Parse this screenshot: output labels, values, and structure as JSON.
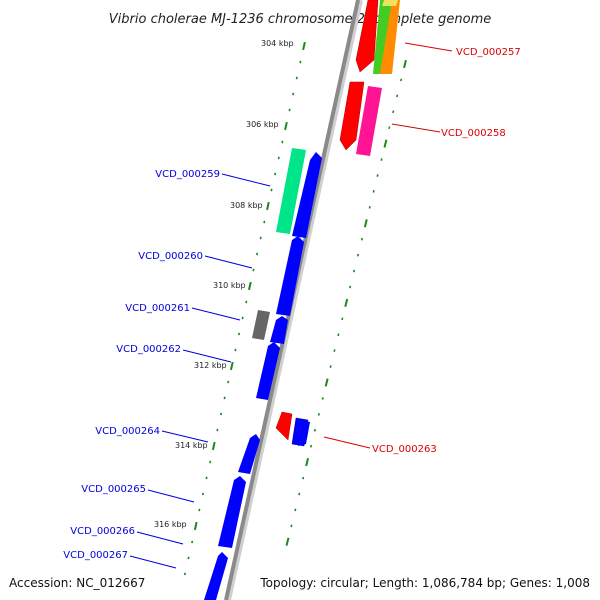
{
  "title": "Vibrio cholerae MJ-1236 chromosome 2, complete genome",
  "accession": "Accession: NC_012667",
  "summary": "Topology: circular; Length: 1,086,784 bp; Genes: 1,008",
  "ticks": [
    {
      "label": "304 kbp"
    },
    {
      "label": "306 kbp"
    },
    {
      "label": "308 kbp"
    },
    {
      "label": "310 kbp"
    },
    {
      "label": "312 kbp"
    },
    {
      "label": "314 kbp"
    },
    {
      "label": "316 kbp"
    }
  ],
  "colors": {
    "forward_label": "#0000dd",
    "reverse_label": "#dd0000",
    "backbone": "#8a8a8a",
    "tick": "#1a8a1a",
    "blue_gene": "#0000ff",
    "red_gene": "#ff0000",
    "magenta_gene": "#ff1493",
    "green_gene": "#00e58a",
    "grey_gene": "#666666",
    "lime_gene": "#44cc22",
    "orange_gene": "#ff8c00"
  },
  "gene_labels": [
    {
      "text": "VCD_000257",
      "strand": "reverse"
    },
    {
      "text": "VCD_000258",
      "strand": "reverse"
    },
    {
      "text": "VCD_000259",
      "strand": "forward"
    },
    {
      "text": "VCD_000260",
      "strand": "forward"
    },
    {
      "text": "VCD_000261",
      "strand": "forward"
    },
    {
      "text": "VCD_000262",
      "strand": "forward"
    },
    {
      "text": "VCD_000263",
      "strand": "reverse"
    },
    {
      "text": "VCD_000264",
      "strand": "forward"
    },
    {
      "text": "VCD_000265",
      "strand": "forward"
    },
    {
      "text": "VCD_000266",
      "strand": "forward"
    },
    {
      "text": "VCD_000267",
      "strand": "forward"
    }
  ]
}
